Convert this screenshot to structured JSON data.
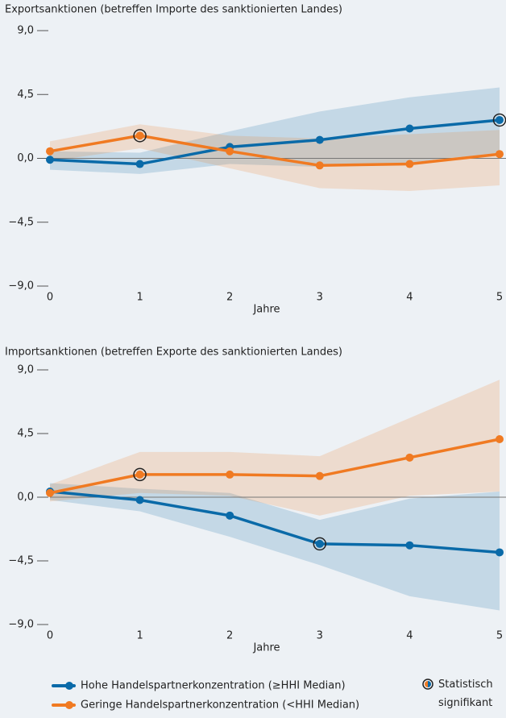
{
  "chart_data": [
    {
      "type": "line",
      "title": "Exportsanktionen (betreffen Importe des sanktionierten Landes)",
      "x_label": "Jahre",
      "x": [
        0,
        1,
        2,
        3,
        4,
        5
      ],
      "xlim": [
        0,
        5
      ],
      "xticks": [
        0,
        1,
        2,
        3,
        4,
        5
      ],
      "ylim": [
        -9,
        9
      ],
      "yticks": [
        {
          "value": 9,
          "label": "9,0"
        },
        {
          "value": 4.5,
          "label": "4,5"
        },
        {
          "value": 0,
          "label": "0,0"
        },
        {
          "value": -4.5,
          "label": "−4,5"
        },
        {
          "value": -9,
          "label": "−9,0"
        }
      ],
      "series": [
        {
          "name": "Hohe Handelspartnerkonzentration (≥HHI Median)",
          "color": "#0a6aa8",
          "values": [
            -0.1,
            -0.4,
            0.8,
            1.3,
            2.1,
            2.7
          ],
          "lower": [
            -0.8,
            -1.1,
            -0.4,
            -0.6,
            -0.3,
            0.4
          ],
          "upper": [
            0.5,
            0.4,
            1.9,
            3.3,
            4.3,
            5.0
          ],
          "significant_x": [
            5
          ]
        },
        {
          "name": "Geringe Handelspartnerkonzentration (<HHI Median)",
          "color": "#f07a22",
          "values": [
            0.5,
            1.6,
            0.5,
            -0.5,
            -0.4,
            0.3
          ],
          "lower": [
            -0.2,
            0.7,
            -0.7,
            -2.1,
            -2.3,
            -1.9
          ],
          "upper": [
            1.2,
            2.4,
            1.6,
            1.4,
            1.7,
            2.0
          ],
          "significant_x": [
            1
          ]
        }
      ]
    },
    {
      "type": "line",
      "title": "Importsanktionen (betreffen Exporte des sanktionierten Landes)",
      "x_label": "Jahre",
      "x": [
        0,
        1,
        2,
        3,
        4,
        5
      ],
      "xlim": [
        0,
        5
      ],
      "xticks": [
        0,
        1,
        2,
        3,
        4,
        5
      ],
      "ylim": [
        -9,
        9
      ],
      "yticks": [
        {
          "value": 9,
          "label": "9,0"
        },
        {
          "value": 4.5,
          "label": "4,5"
        },
        {
          "value": 0,
          "label": "0,0"
        },
        {
          "value": -4.5,
          "label": "−4,5"
        },
        {
          "value": -9,
          "label": "−9,0"
        }
      ],
      "series": [
        {
          "name": "Hohe Handelspartnerkonzentration (≥HHI Median)",
          "color": "#0a6aa8",
          "values": [
            0.4,
            -0.2,
            -1.3,
            -3.3,
            -3.4,
            -3.9
          ],
          "lower": [
            -0.2,
            -1.0,
            -2.8,
            -4.8,
            -7.0,
            -8.0
          ],
          "upper": [
            1.0,
            0.6,
            0.3,
            -1.6,
            -0.1,
            0.4
          ],
          "significant_x": [
            3
          ]
        },
        {
          "name": "Geringe Handelspartnerkonzentration (<HHI Median)",
          "color": "#f07a22",
          "values": [
            0.3,
            1.6,
            1.6,
            1.5,
            2.8,
            4.1
          ],
          "lower": [
            -0.3,
            0.3,
            0.1,
            -1.3,
            0.1,
            0.4
          ],
          "upper": [
            0.9,
            3.2,
            3.2,
            2.9,
            5.6,
            8.3
          ],
          "significant_x": [
            1
          ]
        }
      ]
    }
  ],
  "significance_label": "Statistisch signifikant"
}
